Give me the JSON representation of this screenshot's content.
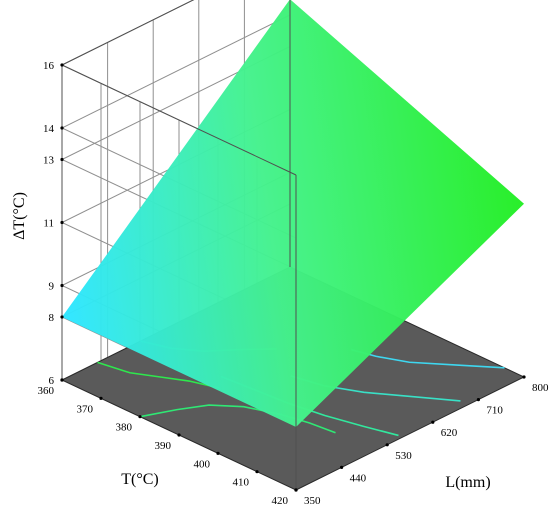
{
  "chart_data": {
    "type": "surface",
    "z_axis": {
      "label": "ΔT(°C)",
      "ticks": [
        "6",
        "8",
        "9",
        "11",
        "13",
        "14",
        "16"
      ]
    },
    "t_axis": {
      "label": "T(°C)",
      "ticks": [
        "360",
        "370",
        "380",
        "390",
        "400",
        "410",
        "420"
      ]
    },
    "l_axis": {
      "label": "L(mm)",
      "ticks": [
        "350",
        "440",
        "530",
        "620",
        "710",
        "800"
      ]
    },
    "surface_corners": [
      {
        "T": 360,
        "L": 350,
        "dT": 8
      },
      {
        "T": 420,
        "L": 350,
        "dT": 8
      },
      {
        "T": 420,
        "L": 800,
        "dT": 11.5
      },
      {
        "T": 360,
        "L": 800,
        "dT": 14.5
      }
    ],
    "colormap": [
      "#2ee6ff",
      "#44f28c",
      "#22ee22"
    ],
    "floor_color": "#5a5a5a",
    "contour_colors": [
      "#3ed7f0",
      "#39e0c6",
      "#32e89e",
      "#2fe874",
      "#2ee84d"
    ],
    "grid": true
  }
}
